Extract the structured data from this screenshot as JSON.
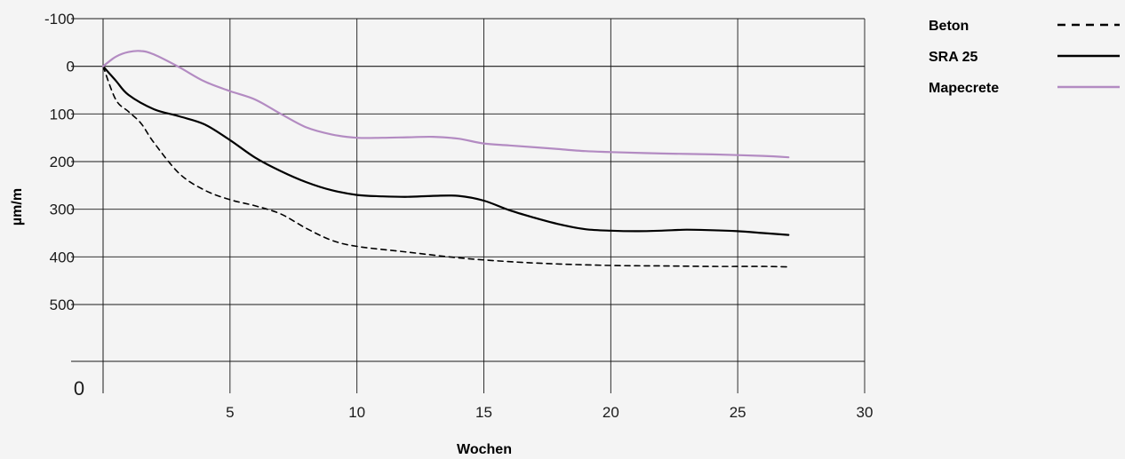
{
  "chart_data": {
    "type": "line",
    "xlabel": "Wochen",
    "ylabel": "µm/m",
    "origin_label": "0",
    "xlim": [
      0,
      30
    ],
    "ylim": [
      -100,
      500
    ],
    "y_inverted": true,
    "x_ticks": [
      {
        "value": 5,
        "label": "5"
      },
      {
        "value": 10,
        "label": "10"
      },
      {
        "value": 15,
        "label": "15"
      },
      {
        "value": 20,
        "label": "20"
      },
      {
        "value": 25,
        "label": "25"
      },
      {
        "value": 30,
        "label": "30"
      }
    ],
    "y_ticks": [
      {
        "value": -100,
        "label": "-100"
      },
      {
        "value": 0,
        "label": "0"
      },
      {
        "value": 100,
        "label": "100"
      },
      {
        "value": 200,
        "label": "200"
      },
      {
        "value": 300,
        "label": "300"
      },
      {
        "value": 400,
        "label": "400"
      },
      {
        "value": 500,
        "label": "500"
      }
    ],
    "grid": true,
    "legend_position": "top-right",
    "series": [
      {
        "name": "Beton",
        "color": "#000000",
        "style": "dashed",
        "x": [
          0,
          0.5,
          1,
          1.5,
          2,
          3,
          4,
          5,
          6,
          7,
          8,
          9,
          10,
          12,
          14,
          16,
          18,
          20,
          22,
          24,
          26,
          27
        ],
        "y": [
          0,
          70,
          95,
          120,
          160,
          225,
          260,
          280,
          293,
          310,
          340,
          365,
          378,
          390,
          402,
          410,
          415,
          418,
          419,
          420,
          420,
          421
        ]
      },
      {
        "name": "SRA 25",
        "color": "#000000",
        "style": "solid",
        "x": [
          0,
          0.5,
          1,
          2,
          3,
          4,
          5,
          6,
          7,
          8,
          9,
          10,
          11,
          12,
          13,
          14,
          15,
          16,
          17,
          18,
          19,
          20,
          21,
          22,
          23,
          24,
          25,
          26,
          27
        ],
        "y": [
          0,
          30,
          60,
          90,
          105,
          122,
          155,
          192,
          220,
          243,
          260,
          270,
          273,
          274,
          272,
          272,
          282,
          302,
          318,
          332,
          342,
          345,
          346,
          345,
          343,
          344,
          346,
          350,
          354
        ]
      },
      {
        "name": "Mapecrete",
        "color": "#b38bc2",
        "style": "solid",
        "x": [
          0,
          0.5,
          1,
          1.5,
          2,
          3,
          4,
          5,
          6,
          7,
          8,
          9,
          10,
          11,
          12,
          13,
          14,
          15,
          16,
          17,
          18,
          19,
          20,
          22,
          24,
          26,
          27
        ],
        "y": [
          0,
          -20,
          -30,
          -32,
          -25,
          2,
          32,
          52,
          70,
          100,
          128,
          143,
          150,
          150,
          149,
          148,
          152,
          162,
          166,
          170,
          174,
          178,
          180,
          183,
          185,
          188,
          191
        ]
      }
    ]
  }
}
